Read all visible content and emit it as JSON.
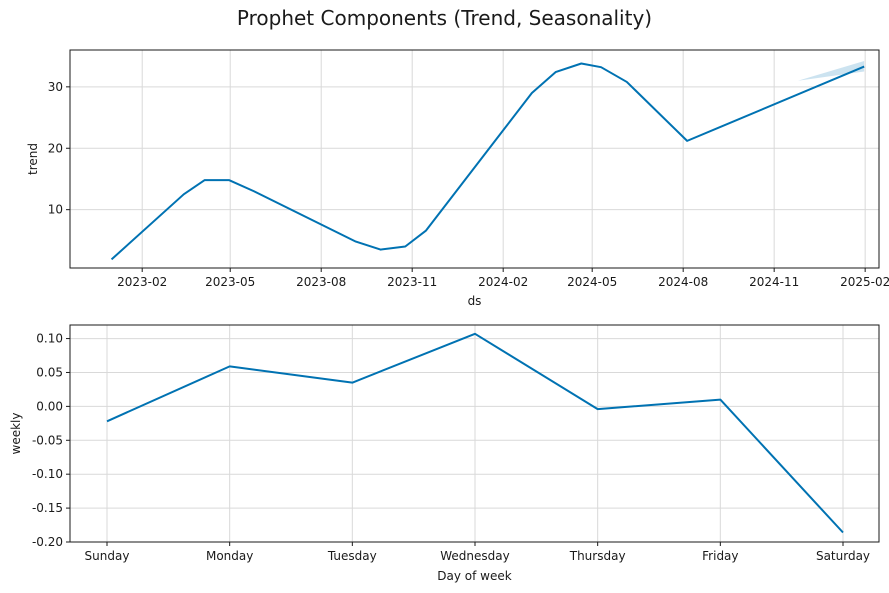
{
  "title": "Prophet Components (Trend, Seasonality)",
  "chart_data": [
    {
      "type": "line",
      "xlabel": "ds",
      "ylabel": "trend",
      "x_axis": "date",
      "xlim": [
        "2022-11-20",
        "2025-02-15"
      ],
      "ylim": [
        0.5,
        36.0
      ],
      "xticks": [
        {
          "date": "2023-02-01",
          "label": "2023-02"
        },
        {
          "date": "2023-05-01",
          "label": "2023-05"
        },
        {
          "date": "2023-08-01",
          "label": "2023-08"
        },
        {
          "date": "2023-11-01",
          "label": "2023-11"
        },
        {
          "date": "2024-02-01",
          "label": "2024-02"
        },
        {
          "date": "2024-05-01",
          "label": "2024-05"
        },
        {
          "date": "2024-08-01",
          "label": "2024-08"
        },
        {
          "date": "2024-11-01",
          "label": "2024-11"
        },
        {
          "date": "2025-02-01",
          "label": "2025-02"
        }
      ],
      "yticks": [
        10,
        20,
        30
      ],
      "grid": true,
      "series": [
        {
          "x": [
            "2023-01-01",
            "2023-03-15",
            "2023-04-05",
            "2023-04-30",
            "2023-05-25",
            "2023-09-05",
            "2023-09-30",
            "2023-10-25",
            "2023-11-15",
            "2024-03-01",
            "2024-03-25",
            "2024-04-20",
            "2024-05-10",
            "2024-06-05",
            "2024-08-05",
            "2025-01-31"
          ],
          "y": [
            1.9,
            12.5,
            14.8,
            14.8,
            13.0,
            4.8,
            3.5,
            4.0,
            6.6,
            29.0,
            32.4,
            33.8,
            33.2,
            30.8,
            21.2,
            33.3
          ]
        }
      ],
      "uncertainty_band": {
        "x": [
          "2024-11-25",
          "2025-01-31"
        ],
        "lower": [
          31.0,
          32.5
        ],
        "upper": [
          31.0,
          34.2
        ]
      }
    },
    {
      "type": "line",
      "xlabel": "Day of week",
      "ylabel": "weekly",
      "categories": [
        "Sunday",
        "Monday",
        "Tuesday",
        "Wednesday",
        "Thursday",
        "Friday",
        "Saturday"
      ],
      "ylim": [
        -0.2,
        0.12
      ],
      "yticks": [
        -0.2,
        -0.15,
        -0.1,
        -0.05,
        0.0,
        0.05,
        0.1
      ],
      "ytick_labels": [
        "-0.20",
        "-0.15",
        "-0.10",
        "-0.05",
        "0.00",
        "0.05",
        "0.10"
      ],
      "grid": true,
      "series": [
        {
          "values": [
            -0.022,
            0.059,
            0.035,
            0.107,
            -0.004,
            0.01,
            -0.186
          ]
        }
      ]
    }
  ],
  "colors": {
    "line": "#0072b2",
    "band": "#0072b2",
    "grid": "#d9d9d9",
    "axis": "#1a1a1a"
  }
}
